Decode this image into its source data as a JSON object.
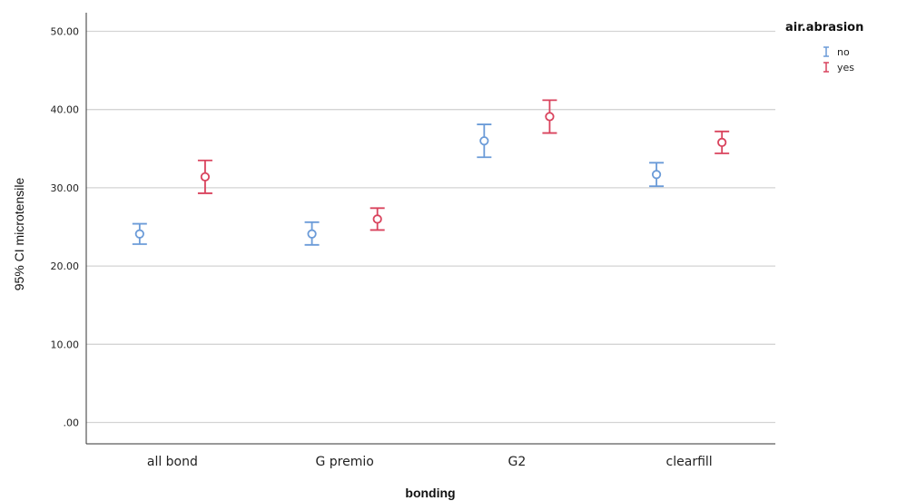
{
  "chart_data": {
    "type": "errorbar",
    "xlabel": "bonding",
    "ylabel": "95% CI microtensile",
    "categories": [
      "all bond",
      "G premio",
      "G2",
      "clearfill"
    ],
    "ylim": [
      -3,
      52
    ],
    "yticks": [
      0,
      10,
      20,
      30,
      40,
      50
    ],
    "ytick_labels": [
      ".00",
      "10.00",
      "20.00",
      "30.00",
      "40.00",
      "50.00"
    ],
    "grid": "horizontal",
    "legend": {
      "title": "air.abrasion",
      "position": "top-right"
    },
    "series": [
      {
        "name": "no",
        "color": "#6b9bd8",
        "mean": [
          24.1,
          24.1,
          36.0,
          31.7
        ],
        "lower": [
          22.8,
          22.7,
          33.9,
          30.2
        ],
        "upper": [
          25.4,
          25.6,
          38.1,
          33.2
        ]
      },
      {
        "name": "yes",
        "color": "#d9435d",
        "mean": [
          31.4,
          26.0,
          39.1,
          35.8
        ],
        "lower": [
          29.3,
          24.6,
          37.0,
          34.4
        ],
        "upper": [
          33.5,
          27.4,
          41.2,
          37.2
        ]
      }
    ]
  }
}
